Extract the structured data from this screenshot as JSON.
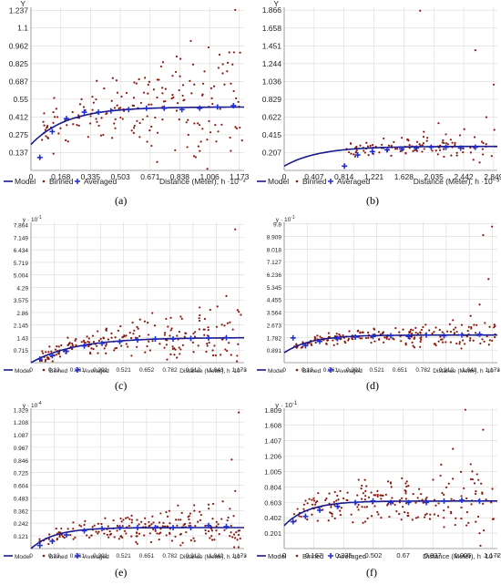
{
  "colors": {
    "model": "#1a1a8c",
    "binned": "#8b1a0e",
    "averaged": "#1f2fd8",
    "grid": "#d9d9d9"
  },
  "legend": {
    "model": "Model",
    "binned": "Binned",
    "averaged": "Averaged"
  },
  "chart_data": [
    {
      "id": "a",
      "type": "scatter",
      "caption": "(a)",
      "ylabel": "Y",
      "xlabel": "Distance (Meter), h ·10⁻⁴",
      "y_multiplier": "",
      "multiplier_sup": "",
      "yticks": [
        "0.137",
        "0.275",
        "0.412",
        "0.55",
        "0.687",
        "0.825",
        "0.962",
        "1.1",
        "1.237"
      ],
      "xticks": [
        "0",
        "0.168",
        "0.335",
        "0.503",
        "0.671",
        "0.838",
        "1.006",
        "1.173"
      ],
      "xlim": [
        0,
        1.2
      ],
      "ylim": [
        0,
        1.26
      ],
      "model": {
        "nugget": 0.2,
        "sill": 0.49,
        "range": 0.6
      },
      "averaged": [
        [
          0.05,
          0.1
        ],
        [
          0.12,
          0.3
        ],
        [
          0.2,
          0.4
        ],
        [
          0.3,
          0.45
        ],
        [
          0.38,
          0.45
        ],
        [
          0.45,
          0.46
        ],
        [
          0.55,
          0.47
        ],
        [
          0.65,
          0.48
        ],
        [
          0.75,
          0.48
        ],
        [
          0.85,
          0.47
        ],
        [
          0.95,
          0.48
        ],
        [
          1.05,
          0.49
        ],
        [
          1.14,
          0.5
        ]
      ],
      "binned_noise": {
        "count": 190,
        "spread": 0.14,
        "seed": 11
      },
      "binned_outliers": [
        [
          1.15,
          1.24
        ],
        [
          0.9,
          1.0
        ],
        [
          0.82,
          0.88
        ],
        [
          1.0,
          0.95
        ],
        [
          1.08,
          0.82
        ],
        [
          0.72,
          0.7
        ],
        [
          0.95,
          0.15
        ],
        [
          0.88,
          0.18
        ]
      ]
    },
    {
      "id": "b",
      "type": "scatter",
      "caption": "(b)",
      "ylabel": "Y",
      "xlabel": "Distance (Meter), h ·10⁻³",
      "y_multiplier": "",
      "multiplier_sup": "",
      "yticks": [
        "0.207",
        "0.415",
        "0.622",
        "0.829",
        "1.036",
        "1.244",
        "1.451",
        "1.658",
        "1.866"
      ],
      "xticks": [
        "0",
        "0.407",
        "0.814",
        "1.221",
        "1.628",
        "2.035",
        "2.442",
        "2.849"
      ],
      "xlim": [
        0,
        2.9
      ],
      "ylim": [
        0,
        1.9
      ],
      "model": {
        "nugget": 0.05,
        "sill": 0.28,
        "range": 1.4
      },
      "averaged": [
        [
          0.82,
          0.05
        ],
        [
          1.0,
          0.18
        ],
        [
          1.2,
          0.22
        ],
        [
          1.4,
          0.24
        ],
        [
          1.6,
          0.25
        ],
        [
          1.8,
          0.26
        ],
        [
          2.0,
          0.27
        ],
        [
          2.2,
          0.27
        ],
        [
          2.4,
          0.26
        ],
        [
          2.6,
          0.27
        ]
      ],
      "binned_noise": {
        "count": 110,
        "spread": 0.05,
        "seed": 23,
        "xmin": 0.82
      },
      "binned_outliers": [
        [
          1.85,
          1.86
        ],
        [
          2.6,
          1.4
        ],
        [
          2.85,
          1.0
        ],
        [
          2.75,
          0.62
        ],
        [
          2.1,
          0.55
        ],
        [
          2.45,
          0.48
        ],
        [
          2.2,
          0.42
        ],
        [
          1.9,
          0.45
        ],
        [
          1.6,
          0.38
        ]
      ]
    },
    {
      "id": "c",
      "type": "scatter",
      "caption": "(c)",
      "ylabel": "y",
      "xlabel": "Distance (Meter), h ·10⁻⁴",
      "y_multiplier": "· 10",
      "multiplier_sup": "-1",
      "yticks": [
        "0.715",
        "1.43",
        "2.145",
        "2.86",
        "3.575",
        "4.29",
        "5.004",
        "5.719",
        "6.434",
        "7.149",
        "7.864"
      ],
      "xticks": [
        "0",
        "0.13",
        "0.261",
        "0.391",
        "0.521",
        "0.652",
        "0.782",
        "0.912",
        "1.043",
        "1.173"
      ],
      "xlim": [
        0,
        1.2
      ],
      "ylim": [
        0,
        8.0
      ],
      "model": {
        "nugget": 0.0,
        "sill": 1.43,
        "range": 0.75
      },
      "averaged": [
        [
          0.05,
          0.2
        ],
        [
          0.12,
          0.4
        ],
        [
          0.2,
          0.65
        ],
        [
          0.3,
          0.95
        ],
        [
          0.4,
          1.1
        ],
        [
          0.5,
          1.2
        ],
        [
          0.6,
          1.3
        ],
        [
          0.7,
          1.35
        ],
        [
          0.8,
          1.35
        ],
        [
          0.9,
          1.38
        ],
        [
          1.0,
          1.4
        ],
        [
          1.1,
          1.42
        ]
      ],
      "binned_noise": {
        "count": 200,
        "spread": 0.45,
        "seed": 37
      },
      "binned_outliers": [
        [
          1.15,
          7.6
        ],
        [
          1.1,
          3.8
        ],
        [
          1.05,
          3.2
        ],
        [
          1.17,
          2.9
        ],
        [
          0.95,
          2.7
        ],
        [
          0.85,
          2.5
        ],
        [
          1.12,
          2.3
        ]
      ]
    },
    {
      "id": "d",
      "type": "scatter",
      "caption": "(d)",
      "ylabel": "y",
      "xlabel": "Distance (Meter), h ·10⁻⁴",
      "y_multiplier": "· 10",
      "multiplier_sup": "-1",
      "yticks": [
        "0.891",
        "1.782",
        "2.673",
        "3.564",
        "4.455",
        "5.345",
        "6.236",
        "7.127",
        "8.018",
        "8.909",
        "9.8"
      ],
      "xticks": [
        "0",
        "0.13",
        "0.261",
        "0.391",
        "0.521",
        "0.651",
        "0.782",
        "0.912",
        "1.042",
        "1.173"
      ],
      "xlim": [
        0,
        1.2
      ],
      "ylim": [
        0,
        9.9
      ],
      "model": {
        "nugget": 0.7,
        "sill": 1.95,
        "range": 0.45
      },
      "averaged": [
        [
          0.05,
          1.75
        ],
        [
          0.12,
          1.2
        ],
        [
          0.2,
          1.5
        ],
        [
          0.3,
          1.7
        ],
        [
          0.4,
          1.8
        ],
        [
          0.5,
          1.85
        ],
        [
          0.6,
          1.9
        ],
        [
          0.7,
          1.85
        ],
        [
          0.8,
          1.95
        ],
        [
          0.9,
          1.9
        ],
        [
          1.0,
          1.95
        ],
        [
          1.1,
          2.0
        ]
      ],
      "binned_noise": {
        "count": 200,
        "spread": 0.3,
        "seed": 53
      },
      "binned_outliers": [
        [
          1.17,
          9.6
        ],
        [
          1.12,
          9.0
        ],
        [
          1.15,
          5.9
        ],
        [
          1.1,
          4.1
        ],
        [
          1.05,
          3.3
        ],
        [
          0.95,
          3.0
        ],
        [
          1.13,
          2.8
        ]
      ]
    },
    {
      "id": "e",
      "type": "scatter",
      "caption": "(e)",
      "ylabel": "y",
      "xlabel": "Distance (Meter), h ·10⁻⁴",
      "y_multiplier": "· 10",
      "multiplier_sup": "-4",
      "yticks": [
        "0.121",
        "0.242",
        "0.362",
        "0.483",
        "0.604",
        "0.725",
        "0.846",
        "0.967",
        "1.087",
        "1.208",
        "1.329"
      ],
      "xticks": [
        "0",
        "0.13",
        "0.261",
        "0.391",
        "0.521",
        "0.651",
        "0.782",
        "0.912",
        "1.042",
        "1.173"
      ],
      "xlim": [
        0,
        1.2
      ],
      "ylim": [
        0,
        1.34
      ],
      "model": {
        "nugget": 0.0,
        "sill": 0.2,
        "range": 0.4
      },
      "averaged": [
        [
          0.05,
          0.03
        ],
        [
          0.12,
          0.07
        ],
        [
          0.2,
          0.13
        ],
        [
          0.3,
          0.17
        ],
        [
          0.4,
          0.19
        ],
        [
          0.5,
          0.2
        ],
        [
          0.6,
          0.2
        ],
        [
          0.7,
          0.2
        ],
        [
          0.8,
          0.2
        ],
        [
          0.9,
          0.2
        ],
        [
          1.0,
          0.22
        ],
        [
          1.1,
          0.21
        ]
      ],
      "binned_noise": {
        "count": 200,
        "spread": 0.06,
        "seed": 71
      },
      "binned_outliers": [
        [
          1.17,
          1.3
        ],
        [
          1.13,
          0.85
        ],
        [
          1.15,
          0.55
        ],
        [
          1.08,
          0.45
        ],
        [
          1.0,
          0.42
        ],
        [
          1.12,
          0.38
        ],
        [
          0.95,
          0.35
        ]
      ]
    },
    {
      "id": "f",
      "type": "scatter",
      "caption": "(f)",
      "ylabel": "y",
      "xlabel": "Distance (Meter), h ·10⁻⁴",
      "y_multiplier": "· 10",
      "multiplier_sup": "-1",
      "yticks": [
        "0.201",
        "0.402",
        "0.603",
        "0.804",
        "1.005",
        "1.206",
        "1.407",
        "1.608",
        "1.809"
      ],
      "xticks": [
        "0",
        "0.167",
        "0.335",
        "0.502",
        "0.67",
        "0.837",
        "1.005",
        "1.172"
      ],
      "xlim": [
        0,
        1.2
      ],
      "ylim": [
        0,
        1.83
      ],
      "model": {
        "nugget": 0.3,
        "sill": 0.62,
        "range": 0.4
      },
      "averaged": [
        [
          0.05,
          0.35
        ],
        [
          0.12,
          0.42
        ],
        [
          0.2,
          0.5
        ],
        [
          0.3,
          0.55
        ],
        [
          0.4,
          0.6
        ],
        [
          0.5,
          0.62
        ],
        [
          0.6,
          0.6
        ],
        [
          0.7,
          0.6
        ],
        [
          0.8,
          0.6
        ],
        [
          0.9,
          0.62
        ],
        [
          1.0,
          0.63
        ],
        [
          1.1,
          0.62
        ]
      ],
      "binned_noise": {
        "count": 200,
        "spread": 0.14,
        "seed": 89
      },
      "binned_outliers": [
        [
          1.02,
          1.81
        ],
        [
          1.12,
          1.55
        ],
        [
          0.95,
          1.3
        ],
        [
          1.05,
          1.1
        ],
        [
          0.88,
          0.95
        ],
        [
          0.6,
          0.85
        ],
        [
          1.1,
          0.2
        ],
        [
          0.9,
          0.28
        ]
      ]
    }
  ]
}
